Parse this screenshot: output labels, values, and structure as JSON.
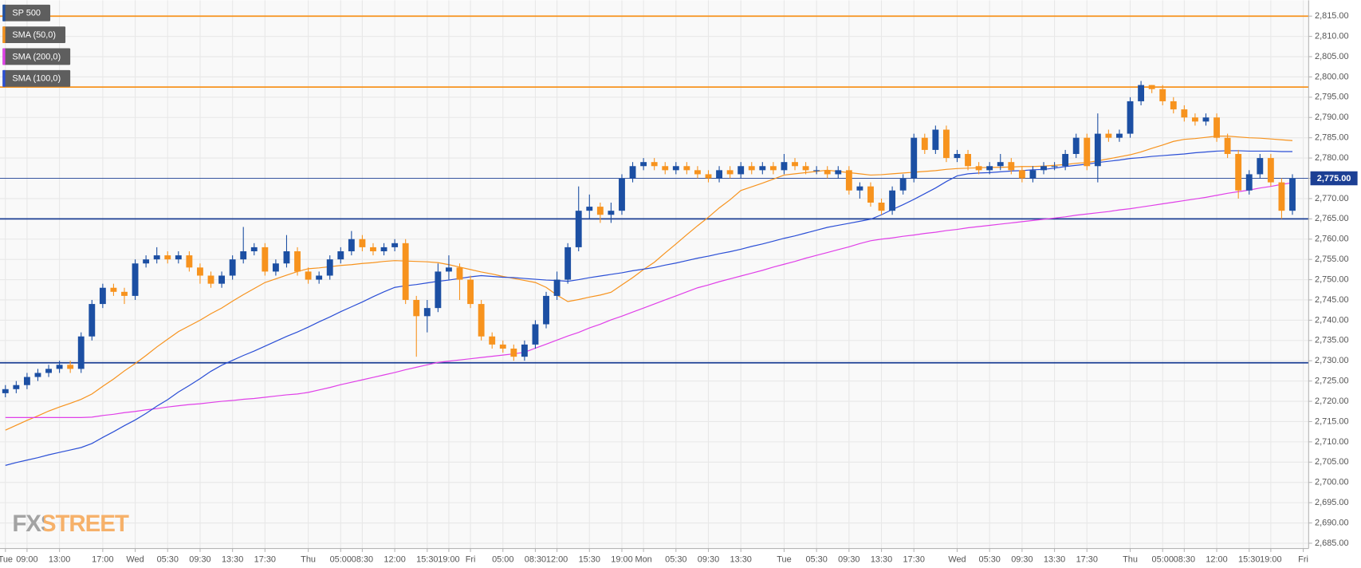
{
  "chart_data": {
    "type": "candlestick",
    "watermark": "FXSTREET",
    "up_color": "#1c4fa3",
    "down_color": "#f7931e",
    "ylim": [
      2683.7,
      2818.9
    ],
    "yticks": [
      {
        "value": 2685,
        "label": "2,685.00"
      },
      {
        "value": 2690,
        "label": "2,690.00"
      },
      {
        "value": 2695,
        "label": "2,695.00"
      },
      {
        "value": 2700,
        "label": "2,700.00"
      },
      {
        "value": 2705,
        "label": "2,705.00"
      },
      {
        "value": 2710,
        "label": "2,710.00"
      },
      {
        "value": 2715,
        "label": "2,715.00"
      },
      {
        "value": 2720,
        "label": "2,720.00"
      },
      {
        "value": 2725,
        "label": "2,725.00"
      },
      {
        "value": 2730,
        "label": "2,730.00"
      },
      {
        "value": 2735,
        "label": "2,735.00"
      },
      {
        "value": 2740,
        "label": "2,740.00"
      },
      {
        "value": 2745,
        "label": "2,745.00"
      },
      {
        "value": 2750,
        "label": "2,750.00"
      },
      {
        "value": 2755,
        "label": "2,755.00"
      },
      {
        "value": 2760,
        "label": "2,760.00"
      },
      {
        "value": 2765,
        "label": "2,765.00"
      },
      {
        "value": 2770,
        "label": "2,770.00"
      },
      {
        "value": 2775,
        "label": "2,775.00"
      },
      {
        "value": 2780,
        "label": "2,780.00"
      },
      {
        "value": 2785,
        "label": "2,785.00"
      },
      {
        "value": 2790,
        "label": "2,790.00"
      },
      {
        "value": 2795,
        "label": "2,795.00"
      },
      {
        "value": 2800,
        "label": "2,800.00"
      },
      {
        "value": 2805,
        "label": "2,805.00"
      },
      {
        "value": 2810,
        "label": "2,810.00"
      },
      {
        "value": 2815,
        "label": "2,815.00"
      }
    ],
    "grid": true,
    "categories": [
      "Tue",
      null,
      "09:00",
      null,
      null,
      "13:00",
      null,
      null,
      null,
      "17:00",
      null,
      null,
      "Wed",
      null,
      null,
      "05:30",
      null,
      null,
      "09:30",
      null,
      null,
      "13:30",
      null,
      null,
      "17:30",
      null,
      null,
      null,
      "Thu",
      null,
      null,
      "05:00",
      null,
      "08:30",
      null,
      null,
      "12:00",
      null,
      null,
      "15:30",
      null,
      "19:00",
      null,
      "Fri",
      null,
      null,
      "05:00",
      null,
      null,
      "08:30",
      null,
      "12:00",
      null,
      null,
      "15:30",
      null,
      null,
      "19:00",
      null,
      "Mon",
      null,
      null,
      "05:30",
      null,
      null,
      "09:30",
      null,
      null,
      "13:30",
      null,
      null,
      null,
      "Tue",
      null,
      null,
      "05:30",
      null,
      null,
      "09:30",
      null,
      null,
      "13:30",
      null,
      null,
      "17:30",
      null,
      null,
      null,
      "Wed",
      null,
      null,
      "05:30",
      null,
      null,
      "09:30",
      null,
      null,
      "13:30",
      null,
      null,
      "17:30",
      null,
      null,
      null,
      "Thu",
      null,
      null,
      "05:00",
      null,
      "08:30",
      null,
      null,
      "12:00",
      null,
      null,
      "15:30",
      null,
      "19:00",
      null,
      null,
      "Fri"
    ],
    "ohlc": {
      "name": "SP 500",
      "color": "#1c4fa3",
      "open": [
        2722,
        2723,
        2724,
        2726,
        2727,
        2728,
        2729,
        2728,
        2736,
        2744,
        2748,
        2747,
        2746,
        2754,
        2755,
        2756,
        2755,
        2756,
        2753,
        2751,
        2749,
        2751,
        2755,
        2757,
        2758,
        2752,
        2754,
        2757,
        2752,
        2750,
        2751,
        2755,
        2757,
        2760,
        2758,
        2757,
        2758,
        2759,
        2745,
        2741,
        2743,
        2752,
        2753,
        2750,
        2744,
        2736,
        2734,
        2733,
        2731,
        2734,
        2739,
        2746,
        2750,
        2758,
        2767,
        2768,
        2766,
        2767,
        2775,
        2778,
        2779,
        2778,
        2777,
        2778,
        2777,
        2776,
        2775,
        2777,
        2776,
        2778,
        2777,
        2778,
        2777,
        2779,
        2778,
        2777,
        2777,
        2776,
        2777,
        2772,
        2773,
        2769,
        2767,
        2772,
        2775,
        2785,
        2782,
        2787,
        2780,
        2781,
        2778,
        2777,
        2778,
        2779,
        2777,
        2775,
        2777,
        2778,
        2778,
        2781,
        2785,
        2778,
        2786,
        2785,
        2786,
        2794,
        2798,
        2797,
        2794,
        2792,
        2790,
        2789,
        2790,
        2785,
        2781,
        2772,
        2776,
        2780,
        2774,
        2767,
        null
      ],
      "high": [
        2724,
        2725,
        2727,
        2728,
        2729,
        2730,
        2730,
        2737,
        2745,
        2749,
        2749,
        2748,
        2755,
        2756,
        2758,
        2757,
        2757,
        2757,
        2754,
        2752,
        2752,
        2756,
        2763,
        2759,
        2759,
        2755,
        2761,
        2758,
        2753,
        2752,
        2756,
        2758,
        2762,
        2761,
        2759,
        2759,
        2760,
        2760,
        2746,
        2745,
        2754,
        2756,
        2754,
        2751,
        2745,
        2737,
        2735,
        2734,
        2735,
        2740,
        2747,
        2752,
        2759,
        2773,
        2771,
        2769,
        2769,
        2776,
        2779,
        2780,
        2780,
        2779,
        2779,
        2779,
        2778,
        2777,
        2778,
        2778,
        2779,
        2779,
        2779,
        2779,
        2781,
        2780,
        2779,
        2778,
        2778,
        2778,
        2778,
        2774,
        2774,
        2770,
        2773,
        2776,
        2786,
        2786,
        2788,
        2788,
        2782,
        2782,
        2779,
        2779,
        2781,
        2780,
        2778,
        2778,
        2779,
        2779,
        2782,
        2786,
        2786,
        2791,
        2787,
        2787,
        2795,
        2799,
        2798,
        2798,
        2795,
        2793,
        2791,
        2791,
        2791,
        2786,
        2782,
        2777,
        2781,
        2781,
        2775,
        2776,
        null
      ],
      "low": [
        2721,
        2722,
        2723,
        2725,
        2726,
        2727,
        2727,
        2727,
        2735,
        2743,
        2746,
        2744,
        2745,
        2753,
        2754,
        2754,
        2754,
        2752,
        2749,
        2748,
        2748,
        2750,
        2754,
        2756,
        2751,
        2751,
        2753,
        2751,
        2749,
        2749,
        2750,
        2754,
        2756,
        2757,
        2756,
        2756,
        2757,
        2744,
        2731,
        2737,
        2742,
        2750,
        2745,
        2743,
        2735,
        2733,
        2732,
        2730,
        2730,
        2733,
        2738,
        2745,
        2749,
        2757,
        2765,
        2764,
        2764,
        2766,
        2774,
        2777,
        2777,
        2776,
        2776,
        2776,
        2775,
        2774,
        2774,
        2775,
        2775,
        2776,
        2776,
        2776,
        2776,
        2777,
        2776,
        2776,
        2775,
        2775,
        2771,
        2770,
        2768,
        2766,
        2766,
        2771,
        2774,
        2781,
        2781,
        2779,
        2779,
        2777,
        2776,
        2776,
        2777,
        2776,
        2774,
        2774,
        2776,
        2777,
        2777,
        2780,
        2777,
        2774,
        2784,
        2784,
        2785,
        2793,
        2796,
        2793,
        2791,
        2789,
        2788,
        2788,
        2784,
        2780,
        2770,
        2771,
        2775,
        2773,
        2765,
        2766,
        null
      ],
      "close": [
        2723,
        2724,
        2726,
        2727,
        2728,
        2729,
        2728,
        2736,
        2744,
        2748,
        2747,
        2746,
        2754,
        2755,
        2756,
        2755,
        2756,
        2753,
        2751,
        2749,
        2751,
        2755,
        2757,
        2758,
        2752,
        2754,
        2757,
        2752,
        2750,
        2751,
        2755,
        2757,
        2760,
        2758,
        2757,
        2758,
        2759,
        2745,
        2741,
        2743,
        2752,
        2753,
        2750,
        2744,
        2736,
        2734,
        2733,
        2731,
        2734,
        2739,
        2746,
        2750,
        2758,
        2767,
        2768,
        2766,
        2767,
        2775,
        2778,
        2779,
        2778,
        2777,
        2778,
        2777,
        2776,
        2775,
        2777,
        2776,
        2778,
        2777,
        2778,
        2777,
        2779,
        2778,
        2777,
        2777,
        2776,
        2777,
        2772,
        2773,
        2769,
        2767,
        2772,
        2775,
        2785,
        2782,
        2787,
        2780,
        2781,
        2778,
        2777,
        2778,
        2779,
        2777,
        2775,
        2777,
        2778,
        2778,
        2781,
        2785,
        2778,
        2786,
        2785,
        2786,
        2794,
        2798,
        2797,
        2794,
        2792,
        2790,
        2789,
        2790,
        2785,
        2781,
        2772,
        2776,
        2780,
        2774,
        2767,
        2775,
        null
      ]
    },
    "series": [
      {
        "name": "SMA (50,0)",
        "color": "#f7931e",
        "values": [
          2712.9,
          2714.1,
          2715.3,
          2716.4,
          2717.6,
          2718.6,
          2719.5,
          2720.5,
          2721.8,
          2723.7,
          2725.5,
          2727.5,
          2729.3,
          2731.3,
          2733.4,
          2735.3,
          2737.2,
          2738.6,
          2740.0,
          2741.6,
          2743.0,
          2744.7,
          2746.3,
          2747.8,
          2749.3,
          2750.2,
          2751.1,
          2752.0,
          2752.7,
          2752.9,
          2753.2,
          2753.5,
          2753.7,
          2754.0,
          2754.2,
          2754.5,
          2754.7,
          2754.6,
          2754.5,
          2754.4,
          2754.2,
          2753.7,
          2753.1,
          2752.5,
          2751.9,
          2751.4,
          2750.8,
          2750.3,
          2749.8,
          2749.3,
          2748.1,
          2746.2,
          2744.6,
          2745.1,
          2745.7,
          2746.2,
          2746.9,
          2748.7,
          2750.5,
          2752.5,
          2754.3,
          2756.6,
          2758.8,
          2761.1,
          2763.3,
          2765.4,
          2767.7,
          2769.7,
          2772.0,
          2772.9,
          2773.8,
          2774.8,
          2775.8,
          2776.1,
          2776.4,
          2776.7,
          2777.0,
          2776.7,
          2776.4,
          2776.1,
          2775.8,
          2775.9,
          2776.1,
          2776.3,
          2776.5,
          2776.7,
          2776.9,
          2777.2,
          2777.4,
          2777.5,
          2777.6,
          2777.7,
          2777.7,
          2777.8,
          2777.9,
          2777.9,
          2778.0,
          2778.2,
          2778.4,
          2778.7,
          2778.9,
          2779.3,
          2779.8,
          2780.3,
          2780.8,
          2781.5,
          2782.4,
          2783.2,
          2784.1,
          2784.6,
          2784.8,
          2785.1,
          2785.4,
          2785.4,
          2785.2,
          2785.0,
          2784.9,
          2784.7,
          2784.5,
          2784.3,
          null
        ]
      },
      {
        "name": "SMA (200,0)",
        "color": "#e040e8",
        "values": [
          2716.0,
          2716.0,
          2716.0,
          2716.0,
          2716.0,
          2716.0,
          2716.0,
          2716.0,
          2716.1,
          2716.5,
          2716.8,
          2717.2,
          2717.5,
          2717.9,
          2718.2,
          2718.6,
          2718.9,
          2719.2,
          2719.4,
          2719.7,
          2720.0,
          2720.2,
          2720.5,
          2720.7,
          2721.0,
          2721.3,
          2721.6,
          2721.8,
          2722.2,
          2722.8,
          2723.4,
          2724.1,
          2724.7,
          2725.3,
          2725.9,
          2726.5,
          2727.1,
          2727.8,
          2728.4,
          2729.0,
          2729.6,
          2729.9,
          2730.2,
          2730.5,
          2730.8,
          2731.1,
          2731.4,
          2731.7,
          2732.1,
          2733.1,
          2734.1,
          2735.1,
          2736.1,
          2737.0,
          2738.1,
          2739.0,
          2740.1,
          2741.0,
          2742.0,
          2743.0,
          2744.0,
          2745.0,
          2746.0,
          2747.0,
          2748.0,
          2748.7,
          2749.5,
          2750.2,
          2750.9,
          2751.6,
          2752.3,
          2753.1,
          2753.8,
          2754.5,
          2755.3,
          2756.0,
          2756.7,
          2757.4,
          2758.1,
          2758.9,
          2759.6,
          2760.0,
          2760.3,
          2760.7,
          2761.0,
          2761.4,
          2761.7,
          2762.1,
          2762.4,
          2762.8,
          2763.1,
          2763.4,
          2763.7,
          2764.0,
          2764.3,
          2764.6,
          2764.9,
          2765.2,
          2765.5,
          2765.9,
          2766.2,
          2766.5,
          2766.8,
          2767.2,
          2767.5,
          2767.9,
          2768.3,
          2768.7,
          2769.1,
          2769.5,
          2769.9,
          2770.3,
          2770.8,
          2771.3,
          2771.7,
          2772.1,
          2772.6,
          2773.0,
          2773.5,
          2773.9,
          null
        ]
      },
      {
        "name": "SMA (100,0)",
        "color": "#2b4fd6",
        "values": [
          2704.2,
          2704.9,
          2705.5,
          2706.1,
          2706.8,
          2707.4,
          2708.0,
          2708.6,
          2709.6,
          2711.1,
          2712.5,
          2714.0,
          2715.4,
          2717.0,
          2718.8,
          2720.4,
          2722.3,
          2723.9,
          2725.6,
          2727.4,
          2728.9,
          2730.1,
          2731.3,
          2732.4,
          2733.6,
          2734.8,
          2736.0,
          2737.1,
          2738.3,
          2739.6,
          2740.8,
          2742.1,
          2743.3,
          2744.5,
          2745.8,
          2747.0,
          2748.1,
          2748.5,
          2748.8,
          2749.2,
          2749.6,
          2749.9,
          2750.3,
          2750.7,
          2751.0,
          2750.8,
          2750.6,
          2750.5,
          2750.3,
          2750.1,
          2749.9,
          2749.8,
          2749.6,
          2750.0,
          2750.5,
          2750.9,
          2751.3,
          2751.7,
          2752.2,
          2752.6,
          2753.0,
          2753.6,
          2754.1,
          2754.7,
          2755.3,
          2755.8,
          2756.4,
          2756.9,
          2757.5,
          2758.2,
          2758.8,
          2759.5,
          2760.2,
          2760.8,
          2761.5,
          2762.2,
          2762.9,
          2763.4,
          2763.9,
          2764.4,
          2764.9,
          2766.0,
          2767.3,
          2768.5,
          2769.8,
          2771.2,
          2772.6,
          2774.2,
          2775.6,
          2776.1,
          2776.3,
          2776.4,
          2776.6,
          2776.8,
          2776.9,
          2777.1,
          2777.2,
          2777.5,
          2777.9,
          2778.2,
          2778.5,
          2778.9,
          2779.2,
          2779.5,
          2779.9,
          2780.1,
          2780.4,
          2780.6,
          2780.8,
          2781.0,
          2781.3,
          2781.5,
          2781.7,
          2781.8,
          2781.8,
          2781.7,
          2781.7,
          2781.7,
          2781.6,
          2781.6,
          null
        ]
      }
    ],
    "levels": [
      {
        "value": 2815,
        "color": "#f7931e"
      },
      {
        "value": 2797.5,
        "color": "#f7931e"
      },
      {
        "value": 2765,
        "color": "#1c3f94"
      },
      {
        "value": 2729.5,
        "color": "#1c3f94"
      }
    ],
    "last_price": {
      "value": 2775,
      "label": "2,775.00",
      "color": "#1c3f94"
    }
  }
}
